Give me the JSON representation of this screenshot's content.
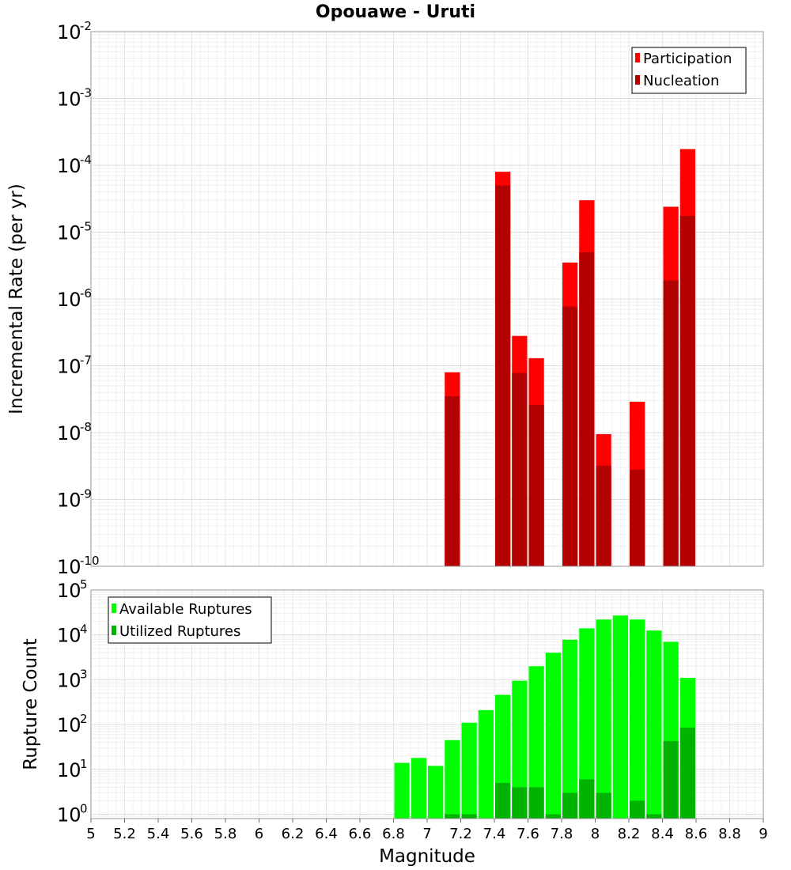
{
  "chart_data": [
    {
      "type": "bar",
      "title": "Opouawe - Uruti",
      "ylabel": "Incremental Rate (per yr)",
      "xlabel": "",
      "yscale": "log",
      "xlim": [
        5,
        9
      ],
      "ylim": [
        1e-10,
        0.01
      ],
      "y_tick_exponents": [
        -2,
        -3,
        -4,
        -5,
        -6,
        -7,
        -8,
        -9,
        -10
      ],
      "grid": true,
      "legend_position": "top-right",
      "bar_width": 0.1,
      "colors": {
        "Participation": "#ff0000",
        "Nucleation": "#b30000"
      },
      "series": [
        {
          "name": "Participation",
          "x": [
            7.15,
            7.45,
            7.55,
            7.65,
            7.85,
            7.95,
            8.05,
            8.25,
            8.45,
            8.55
          ],
          "values": [
            8e-08,
            8e-05,
            2.8e-07,
            1.3e-07,
            3.5e-06,
            3e-05,
            9.5e-09,
            2.9e-08,
            2.4e-05,
            0.000175
          ]
        },
        {
          "name": "Nucleation",
          "x": [
            7.15,
            7.45,
            7.55,
            7.65,
            7.85,
            7.95,
            8.05,
            8.25,
            8.45,
            8.55
          ],
          "values": [
            3.5e-08,
            5e-05,
            7.8e-08,
            2.6e-08,
            7.7e-07,
            5e-06,
            3.2e-09,
            2.8e-09,
            1.9e-06,
            1.75e-05
          ]
        }
      ]
    },
    {
      "type": "bar",
      "xlabel": "Magnitude",
      "ylabel": "Rupture Count",
      "yscale": "log",
      "xlim": [
        5,
        9
      ],
      "ylim": [
        0.8,
        100000.0
      ],
      "x_ticks": [
        "5",
        "5.2",
        "5.4",
        "5.6",
        "5.8",
        "6",
        "6.2",
        "6.4",
        "6.6",
        "6.8",
        "7",
        "7.2",
        "7.4",
        "7.6",
        "7.8",
        "8",
        "8.2",
        "8.4",
        "8.6",
        "8.8",
        "9"
      ],
      "y_tick_exponents": [
        5,
        4,
        3,
        2,
        1,
        0
      ],
      "grid": true,
      "legend_position": "top-left",
      "bar_width": 0.1,
      "colors": {
        "Available Ruptures": "#00ff00",
        "Utilized Ruptures": "#00b300"
      },
      "series": [
        {
          "name": "Available Ruptures",
          "x": [
            6.85,
            6.95,
            7.05,
            7.15,
            7.25,
            7.35,
            7.45,
            7.55,
            7.65,
            7.75,
            7.85,
            7.95,
            8.05,
            8.15,
            8.25,
            8.35,
            8.45,
            8.55
          ],
          "values": [
            14,
            18,
            12,
            45,
            110,
            210,
            460,
            950,
            2000,
            4000,
            7800,
            14000,
            22000,
            27000,
            22000,
            12500,
            7000,
            1100
          ]
        },
        {
          "name": "Utilized Ruptures",
          "x": [
            7.15,
            7.25,
            7.45,
            7.55,
            7.65,
            7.75,
            7.85,
            7.95,
            8.05,
            8.25,
            8.35,
            8.45,
            8.55
          ],
          "values": [
            1,
            1,
            5,
            4,
            4,
            1,
            3,
            6,
            3,
            2,
            1,
            43,
            85
          ]
        }
      ]
    }
  ]
}
